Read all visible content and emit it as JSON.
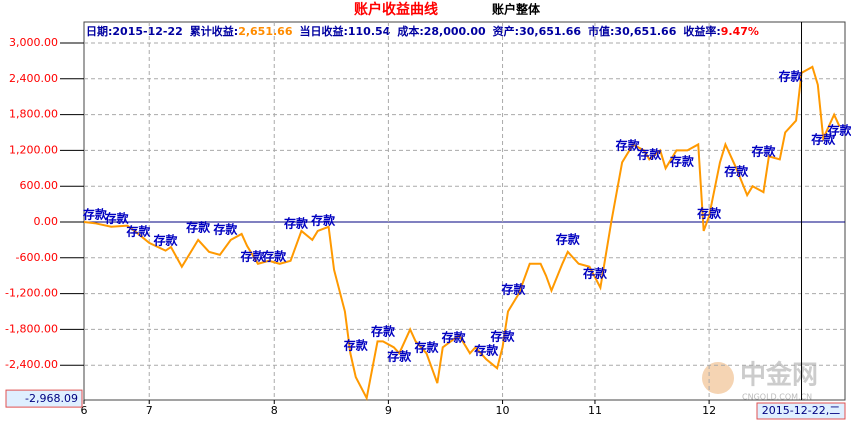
{
  "chart_data": {
    "type": "line",
    "title": "账户收益曲线",
    "subtitle": "账户整体",
    "info": [
      {
        "label": "日期:",
        "value": "2015-12-22",
        "color": "#0000a0"
      },
      {
        "label": "累计收益:",
        "value": "2,651.66",
        "color": "#ff8c00"
      },
      {
        "label": "当日收益:",
        "value": "110.54",
        "color": "#0000a0"
      },
      {
        "label": "成本:",
        "value": "28,000.00",
        "color": "#0000a0"
      },
      {
        "label": "资产:",
        "value": "30,651.66",
        "color": "#0000a0"
      },
      {
        "label": "市值:",
        "value": "30,651.66",
        "color": "#0000a0"
      },
      {
        "label": "收益率:",
        "value": "9.47%",
        "color": "#ff0000"
      }
    ],
    "x": [
      0,
      2,
      5,
      8,
      10,
      12,
      15,
      16,
      18,
      20,
      21,
      23,
      25,
      27,
      29,
      30,
      32,
      34,
      36,
      38,
      40,
      42,
      43,
      45,
      46,
      48,
      49,
      50,
      52,
      54,
      55,
      57,
      58,
      60,
      61,
      63,
      65,
      66,
      69,
      71,
      72,
      74,
      76,
      77,
      78,
      80,
      82,
      84,
      85,
      86,
      88,
      89,
      91,
      93,
      95,
      97,
      99,
      101,
      103,
      104,
      106,
      107,
      109,
      111,
      113,
      114,
      115,
      117,
      118,
      120,
      122,
      123,
      125,
      126,
      128,
      129,
      131,
      132,
      134,
      135,
      136,
      138,
      139
    ],
    "series": [
      {
        "name": "累计收益",
        "color": "#ff9900",
        "values": [
          0,
          -20,
          -80,
          -60,
          -200,
          -350,
          -480,
          -420,
          -750,
          -450,
          -300,
          -500,
          -550,
          -300,
          -200,
          -400,
          -700,
          -650,
          -700,
          -650,
          -150,
          -300,
          -150,
          -80,
          -800,
          -1500,
          -2200,
          -2600,
          -2950,
          -2000,
          -2000,
          -2100,
          -2200,
          -1800,
          -2000,
          -2200,
          -2700,
          -2100,
          -1900,
          -2200,
          -2100,
          -2300,
          -2450,
          -2100,
          -1500,
          -1200,
          -700,
          -700,
          -900,
          -1150,
          -700,
          -500,
          -700,
          -750,
          -1100,
          0,
          1000,
          1300,
          1200,
          1050,
          1200,
          900,
          1200,
          1200,
          1300,
          -150,
          100,
          1000,
          1300,
          900,
          450,
          600,
          500,
          1100,
          1050,
          1500,
          1700,
          2500,
          2600,
          2300,
          1400,
          1800,
          1600
        ]
      }
    ],
    "annotations": [
      {
        "x": 2,
        "y": 117,
        "text": "存款"
      },
      {
        "x": 6,
        "y": 50,
        "text": "存款"
      },
      {
        "x": 10,
        "y": -168,
        "text": "存款"
      },
      {
        "x": 15,
        "y": -318,
        "text": "存款"
      },
      {
        "x": 21,
        "y": -100,
        "text": "存款"
      },
      {
        "x": 26,
        "y": -134,
        "text": "存款"
      },
      {
        "x": 31,
        "y": -587,
        "text": "存款"
      },
      {
        "x": 35,
        "y": -587,
        "text": "存款"
      },
      {
        "x": 39,
        "y": -34,
        "text": "存款"
      },
      {
        "x": 44,
        "y": 17,
        "text": "存款"
      },
      {
        "x": 50,
        "y": -2078,
        "text": "存款"
      },
      {
        "x": 55,
        "y": -1844,
        "text": "存款"
      },
      {
        "x": 58,
        "y": -2263,
        "text": "存款"
      },
      {
        "x": 63,
        "y": -2112,
        "text": "存款"
      },
      {
        "x": 68,
        "y": -1944,
        "text": "存款"
      },
      {
        "x": 74,
        "y": -2162,
        "text": "存款"
      },
      {
        "x": 77,
        "y": -1927,
        "text": "存款"
      },
      {
        "x": 79,
        "y": -1140,
        "text": "存款"
      },
      {
        "x": 89,
        "y": -302,
        "text": "存款"
      },
      {
        "x": 94,
        "y": -872,
        "text": "存款"
      },
      {
        "x": 100,
        "y": 1274,
        "text": "存款"
      },
      {
        "x": 104,
        "y": 1123,
        "text": "存款"
      },
      {
        "x": 110,
        "y": 1006,
        "text": "存款"
      },
      {
        "x": 115,
        "y": 134,
        "text": "存款"
      },
      {
        "x": 120,
        "y": 838,
        "text": "存款"
      },
      {
        "x": 125,
        "y": 1173,
        "text": "存款"
      },
      {
        "x": 130,
        "y": 2430,
        "text": "存款"
      },
      {
        "x": 136,
        "y": 1374,
        "text": "存款"
      },
      {
        "x": 139,
        "y": 1525,
        "text": "存款"
      }
    ],
    "xlim": [
      0,
      140
    ],
    "xticks": [
      {
        "value": 0,
        "label": "6"
      },
      {
        "value": 12,
        "label": "7"
      },
      {
        "value": 35,
        "label": "8"
      },
      {
        "value": 56,
        "label": "9"
      },
      {
        "value": 77,
        "label": "10"
      },
      {
        "value": 94,
        "label": "11"
      },
      {
        "value": 115,
        "label": "12"
      }
    ],
    "ylim": [
      -2983,
      3352
    ],
    "yticks": [
      {
        "value": 3000,
        "label": "3,000.00"
      },
      {
        "value": 2400,
        "label": "2,400.00"
      },
      {
        "value": 1800,
        "label": "1,800.00"
      },
      {
        "value": 1200,
        "label": "1,200.00"
      },
      {
        "value": 600,
        "label": "600.00"
      },
      {
        "value": 0,
        "label": "0.00"
      },
      {
        "value": -600,
        "label": "-600.00"
      },
      {
        "value": -1200,
        "label": "-1,200.00"
      },
      {
        "value": -1800,
        "label": "-1,800.00"
      },
      {
        "value": -2400,
        "label": "-2,400.00"
      }
    ],
    "grid": true,
    "cursor": {
      "x": 132,
      "y": -2968.09,
      "x_label": "2015-12-22,二",
      "y_label": "-2,968.09"
    },
    "watermark": {
      "name": "中金网",
      "url": "CNGOLD.COM.CN"
    }
  }
}
